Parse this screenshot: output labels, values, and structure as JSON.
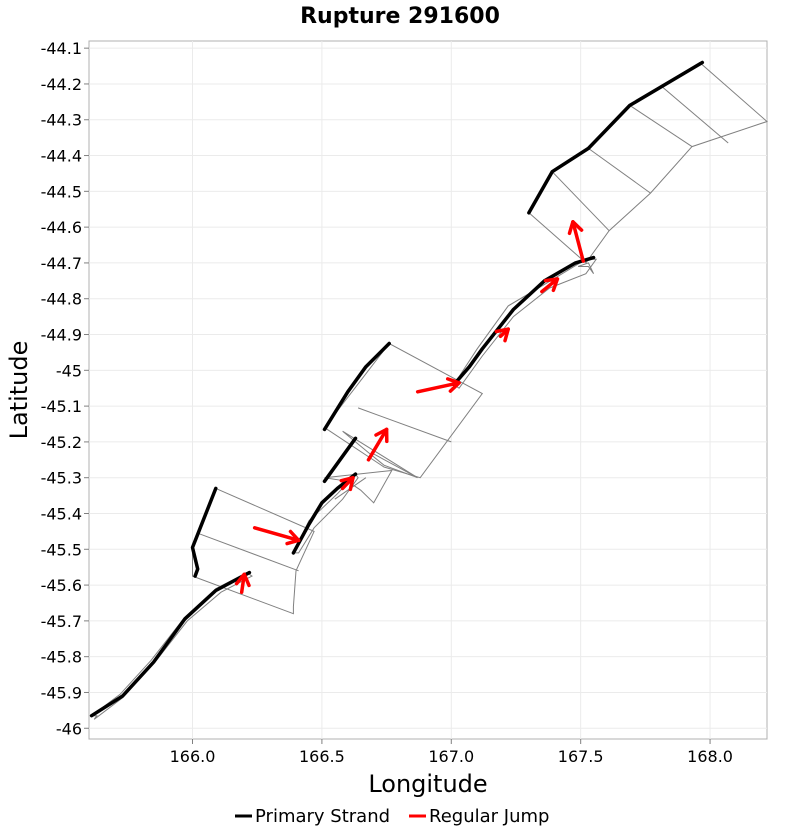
{
  "chart_data": {
    "type": "line",
    "title": "Rupture 291600",
    "xlabel": "Longitude",
    "ylabel": "Latitude",
    "xlim": [
      165.6,
      168.22
    ],
    "ylim": [
      -46.03,
      -44.08
    ],
    "grid": true,
    "legend_position": "bottom",
    "x_ticks": [
      166.0,
      166.5,
      167.0,
      167.5,
      168.0
    ],
    "x_tick_labels": [
      "166.0",
      "166.5",
      "167.0",
      "167.5",
      "168.0"
    ],
    "y_ticks": [
      -44.1,
      -44.2,
      -44.3,
      -44.4,
      -44.5,
      -44.6,
      -44.7,
      -44.8,
      -44.9,
      -45.0,
      -45.1,
      -45.2,
      -45.3,
      -45.4,
      -45.5,
      -45.6,
      -45.7,
      -45.8,
      -45.9,
      -46.0
    ],
    "y_tick_labels": [
      "-44.1",
      "-44.2",
      "-44.3",
      "-44.4",
      "-44.5",
      "-44.6",
      "-44.7",
      "-44.8",
      "-44.9",
      "-45",
      "-45.1",
      "-45.2",
      "-45.3",
      "-45.4",
      "-45.5",
      "-45.6",
      "-45.7",
      "-45.8",
      "-45.9",
      "-46"
    ],
    "legend": [
      {
        "label": "Primary Strand",
        "color": "#000000"
      },
      {
        "label": "Regular Jump",
        "color": "#ff0000"
      }
    ],
    "colors": {
      "primary": "#000000",
      "jump": "#ff0000",
      "outline": "#808080",
      "grid": "#ebebeb"
    },
    "outlines": [
      [
        [
          165.61,
          -45.965
        ],
        [
          165.63,
          -45.965
        ],
        [
          165.62,
          -45.975
        ],
        [
          165.73,
          -45.915
        ],
        [
          165.85,
          -45.82
        ],
        [
          165.98,
          -45.7
        ],
        [
          166.11,
          -45.62
        ],
        [
          166.23,
          -45.575
        ],
        [
          166.21,
          -45.565
        ],
        [
          166.09,
          -45.61
        ],
        [
          165.97,
          -45.69
        ],
        [
          165.84,
          -45.81
        ],
        [
          165.72,
          -45.905
        ],
        [
          165.61,
          -45.965
        ]
      ],
      [
        [
          166.39,
          -45.51
        ],
        [
          166.45,
          -45.42
        ],
        [
          166.56,
          -45.345
        ],
        [
          166.63,
          -45.29
        ],
        [
          166.64,
          -45.3
        ],
        [
          166.58,
          -45.36
        ],
        [
          166.47,
          -45.44
        ],
        [
          166.41,
          -45.51
        ],
        [
          166.39,
          -45.51
        ]
      ],
      [
        [
          167.01,
          -45.04
        ],
        [
          167.1,
          -44.94
        ],
        [
          167.22,
          -44.82
        ],
        [
          167.36,
          -44.76
        ],
        [
          167.52,
          -44.69
        ],
        [
          167.56,
          -44.69
        ],
        [
          167.52,
          -44.73
        ],
        [
          167.38,
          -44.77
        ],
        [
          167.24,
          -44.85
        ],
        [
          167.12,
          -44.96
        ],
        [
          167.03,
          -45.05
        ],
        [
          167.01,
          -45.04
        ]
      ],
      [
        [
          167.49,
          -44.71
        ],
        [
          167.53,
          -44.71
        ],
        [
          167.55,
          -44.73
        ],
        [
          167.53,
          -44.7
        ],
        [
          167.49,
          -44.71
        ]
      ],
      [
        [
          166.09,
          -45.33
        ],
        [
          166.47,
          -45.45
        ],
        [
          166.4,
          -45.56
        ],
        [
          166.39,
          -45.66
        ],
        [
          166.39,
          -45.68
        ],
        [
          166.0,
          -45.575
        ],
        [
          166.0,
          -45.495
        ],
        [
          166.09,
          -45.33
        ]
      ],
      [
        [
          166.58,
          -45.17
        ],
        [
          166.87,
          -45.3
        ],
        [
          166.74,
          -45.265
        ],
        [
          166.68,
          -45.23
        ],
        [
          166.58,
          -45.17
        ]
      ],
      [
        [
          166.51,
          -45.3
        ],
        [
          166.6,
          -45.31
        ],
        [
          166.65,
          -45.335
        ],
        [
          166.7,
          -45.37
        ],
        [
          166.77,
          -45.28
        ],
        [
          166.51,
          -45.3
        ]
      ],
      [
        [
          166.51,
          -45.16
        ],
        [
          166.76,
          -44.925
        ],
        [
          167.12,
          -45.065
        ],
        [
          166.88,
          -45.3
        ],
        [
          166.74,
          -45.27
        ],
        [
          166.51,
          -45.16
        ]
      ],
      [
        [
          167.3,
          -44.56
        ],
        [
          167.52,
          -44.7
        ],
        [
          167.61,
          -44.61
        ],
        [
          167.77,
          -44.505
        ],
        [
          167.93,
          -44.375
        ],
        [
          168.22,
          -44.305
        ],
        [
          167.96,
          -44.14
        ],
        [
          167.69,
          -44.26
        ],
        [
          167.53,
          -44.38
        ],
        [
          167.39,
          -44.445
        ],
        [
          167.3,
          -44.56
        ]
      ]
    ],
    "panel_divisions": [
      [
        [
          166.02,
          -45.455
        ],
        [
          166.41,
          -45.56
        ]
      ],
      [
        [
          166.64,
          -45.105
        ],
        [
          167.0,
          -45.2
        ]
      ],
      [
        [
          166.69,
          -45.23
        ],
        [
          166.87,
          -45.3
        ]
      ],
      [
        [
          166.55,
          -45.36
        ],
        [
          166.67,
          -45.3
        ]
      ],
      [
        [
          167.39,
          -44.445
        ],
        [
          167.61,
          -44.61
        ]
      ],
      [
        [
          167.53,
          -44.38
        ],
        [
          167.77,
          -44.505
        ]
      ],
      [
        [
          167.69,
          -44.26
        ],
        [
          167.93,
          -44.375
        ]
      ],
      [
        [
          167.81,
          -44.205
        ],
        [
          168.07,
          -44.365
        ]
      ]
    ],
    "primary_strands": [
      [
        [
          165.61,
          -45.965
        ],
        [
          165.73,
          -45.91
        ],
        [
          165.85,
          -45.815
        ],
        [
          165.97,
          -45.695
        ],
        [
          166.09,
          -45.615
        ],
        [
          166.22,
          -45.565
        ]
      ],
      [
        [
          166.39,
          -45.51
        ],
        [
          166.45,
          -45.43
        ],
        [
          166.5,
          -45.37
        ],
        [
          166.56,
          -45.33
        ],
        [
          166.63,
          -45.29
        ]
      ],
      [
        [
          166.01,
          -45.575
        ],
        [
          166.02,
          -45.555
        ],
        [
          166.0,
          -45.495
        ],
        [
          166.09,
          -45.33
        ]
      ],
      [
        [
          166.51,
          -45.31
        ],
        [
          166.63,
          -45.19
        ]
      ],
      [
        [
          166.51,
          -45.165
        ],
        [
          166.6,
          -45.06
        ],
        [
          166.67,
          -44.99
        ],
        [
          166.76,
          -44.925
        ]
      ],
      [
        [
          167.01,
          -45.04
        ],
        [
          167.07,
          -44.99
        ],
        [
          167.12,
          -44.94
        ],
        [
          167.24,
          -44.83
        ],
        [
          167.36,
          -44.75
        ],
        [
          167.48,
          -44.7
        ],
        [
          167.55,
          -44.685
        ]
      ],
      [
        [
          167.3,
          -44.56
        ],
        [
          167.39,
          -44.445
        ],
        [
          167.53,
          -44.38
        ],
        [
          167.69,
          -44.26
        ],
        [
          167.97,
          -44.14
        ]
      ]
    ],
    "jumps": [
      {
        "from": [
          166.19,
          -45.62
        ],
        "to": [
          166.2,
          -45.57
        ]
      },
      {
        "from": [
          166.24,
          -45.44
        ],
        "to": [
          166.41,
          -45.475
        ]
      },
      {
        "from": [
          166.58,
          -45.33
        ],
        "to": [
          166.62,
          -45.3
        ]
      },
      {
        "from": [
          166.68,
          -45.25
        ],
        "to": [
          166.75,
          -45.165
        ]
      },
      {
        "from": [
          166.87,
          -45.06
        ],
        "to": [
          167.03,
          -45.035
        ]
      },
      {
        "from": [
          167.19,
          -44.905
        ],
        "to": [
          167.22,
          -44.885
        ]
      },
      {
        "from": [
          167.35,
          -44.78
        ],
        "to": [
          167.41,
          -44.745
        ]
      },
      {
        "from": [
          167.51,
          -44.695
        ],
        "to": [
          167.47,
          -44.585
        ]
      }
    ]
  }
}
